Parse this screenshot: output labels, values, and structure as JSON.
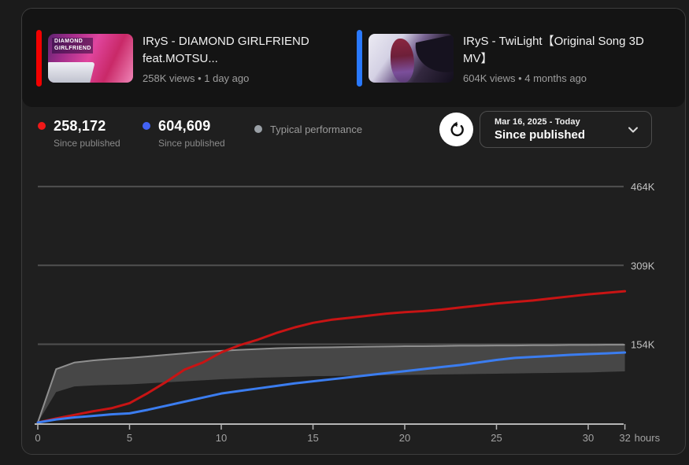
{
  "header": {
    "videos": [
      {
        "title": "IRyS - DIAMOND GIRLFRIEND feat.MOTSU...",
        "meta": "258K views • 1 day ago",
        "accent_color": "#f20000",
        "thumb_text": "DIAMOND GIRLFRIEND"
      },
      {
        "title": "IRyS - TwiLight【Original Song 3D MV】",
        "meta": "604K views • 4 months ago",
        "accent_color": "#2979ff",
        "thumb_text": ""
      }
    ]
  },
  "legend": {
    "items": [
      {
        "value": "258,172",
        "label": "Since published",
        "color": "#f01818"
      },
      {
        "value": "604,609",
        "label": "Since published",
        "color": "#4262f5"
      },
      {
        "value": "",
        "label": "Typical performance",
        "color": "#9aa0a6"
      }
    ]
  },
  "controls": {
    "refresh_icon": "refresh",
    "date_range": "Mar 16, 2025 - Today",
    "range_mode": "Since published",
    "chevron_icon": "chevron-down"
  },
  "chart_data": {
    "type": "line",
    "x_unit": "hours",
    "x_max": 32,
    "x_ticks": [
      0,
      5,
      10,
      15,
      20,
      25,
      30,
      32
    ],
    "ylim_k": [
      0,
      540
    ],
    "grid": "horizontal-only",
    "y_gridlines": [
      {
        "label": "154K",
        "value_k": 154
      },
      {
        "label": "309K",
        "value_k": 309
      },
      {
        "label": "464K",
        "value_k": 464
      }
    ],
    "series": [
      {
        "name": "IRyS - DIAMOND GIRLFRIEND feat.MOTSU... (views since published, thousands)",
        "color": "#c81414",
        "final_value": "258,172",
        "values_k": [
          0,
          8,
          15,
          22,
          28,
          38,
          58,
          80,
          104,
          118,
          138,
          152,
          163,
          176,
          187,
          196,
          202,
          206,
          210,
          214,
          217,
          219,
          222,
          226,
          230,
          234,
          237,
          240,
          244,
          248,
          252,
          255,
          258.2
        ]
      },
      {
        "name": "IRyS - TwiLight【Original Song 3D MV】 (views since published, thousands)",
        "color": "#3b7df0",
        "final_value": "604,609",
        "values_k": [
          0,
          6,
          10,
          13,
          16,
          18,
          25,
          33,
          41,
          49,
          57,
          62,
          67,
          72,
          77,
          81,
          85,
          89,
          93,
          97,
          101,
          105,
          109,
          113,
          118,
          123,
          127,
          129,
          131,
          133,
          134.5,
          136,
          137.6
        ]
      }
    ],
    "typical_band": {
      "name": "Typical performance",
      "fill": "#474747",
      "edge": "#8f8f8f",
      "top_k": [
        0,
        105,
        118,
        122,
        125,
        127,
        130,
        133,
        136,
        139,
        141,
        143,
        144.5,
        146,
        147,
        147.5,
        148,
        148.5,
        149,
        149.5,
        150,
        150,
        150.5,
        151,
        151,
        151.5,
        151.5,
        152,
        152,
        152.5,
        152.5,
        153,
        153
      ],
      "bottom_k": [
        0,
        60,
        71,
        73,
        74,
        75,
        77,
        79,
        81,
        83,
        85,
        86.5,
        88,
        89,
        90,
        91,
        91.5,
        92,
        92.5,
        93,
        93.5,
        94,
        94.5,
        95,
        95.5,
        96,
        96.5,
        97,
        97.5,
        98,
        98.5,
        99.5,
        100.5
      ]
    },
    "colors": {
      "gridline": "#505050",
      "grid_label": "#c2c2c2",
      "axis": "#b5b5b5",
      "tick_label": "#a3a3a3"
    }
  }
}
